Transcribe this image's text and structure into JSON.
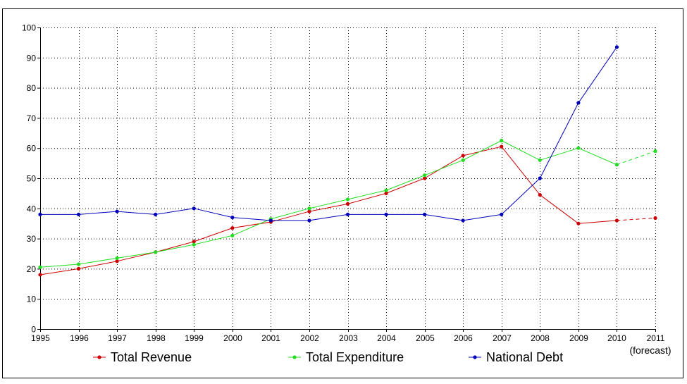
{
  "chart_data": {
    "type": "line",
    "title": "",
    "xlabel": "",
    "ylabel": "",
    "categories": [
      "1995",
      "1996",
      "1997",
      "1998",
      "1999",
      "2000",
      "2001",
      "2002",
      "2003",
      "2004",
      "2005",
      "2006",
      "2007",
      "2008",
      "2009",
      "2010",
      "2011"
    ],
    "category_note": "(forecast)",
    "ylim": [
      0,
      100
    ],
    "yticks": [
      0,
      10,
      20,
      30,
      40,
      50,
      60,
      70,
      80,
      90,
      100
    ],
    "grid": true,
    "legend_position": "bottom",
    "series": [
      {
        "name": "Total Revenue",
        "color": "#cc0000",
        "values": [
          18,
          20,
          22.5,
          25.5,
          29,
          33.5,
          35.5,
          39,
          41.5,
          45,
          50,
          57.5,
          60.5,
          44.5,
          35,
          36,
          36.8
        ],
        "forecast_from_index": 15
      },
      {
        "name": "Total Expenditure",
        "color": "#22dd22",
        "values": [
          20.5,
          21.5,
          23.5,
          25.5,
          28,
          31,
          36.5,
          40,
          43,
          46,
          51,
          56,
          62.5,
          56,
          60,
          54.5,
          59
        ],
        "forecast_from_index": 15
      },
      {
        "name": "National Debt",
        "color": "#0000bb",
        "values": [
          38,
          38,
          39,
          38,
          40,
          37,
          36,
          36,
          38,
          38,
          38,
          36,
          38,
          50,
          75,
          93.5,
          null
        ],
        "forecast_from_index": null
      }
    ]
  }
}
